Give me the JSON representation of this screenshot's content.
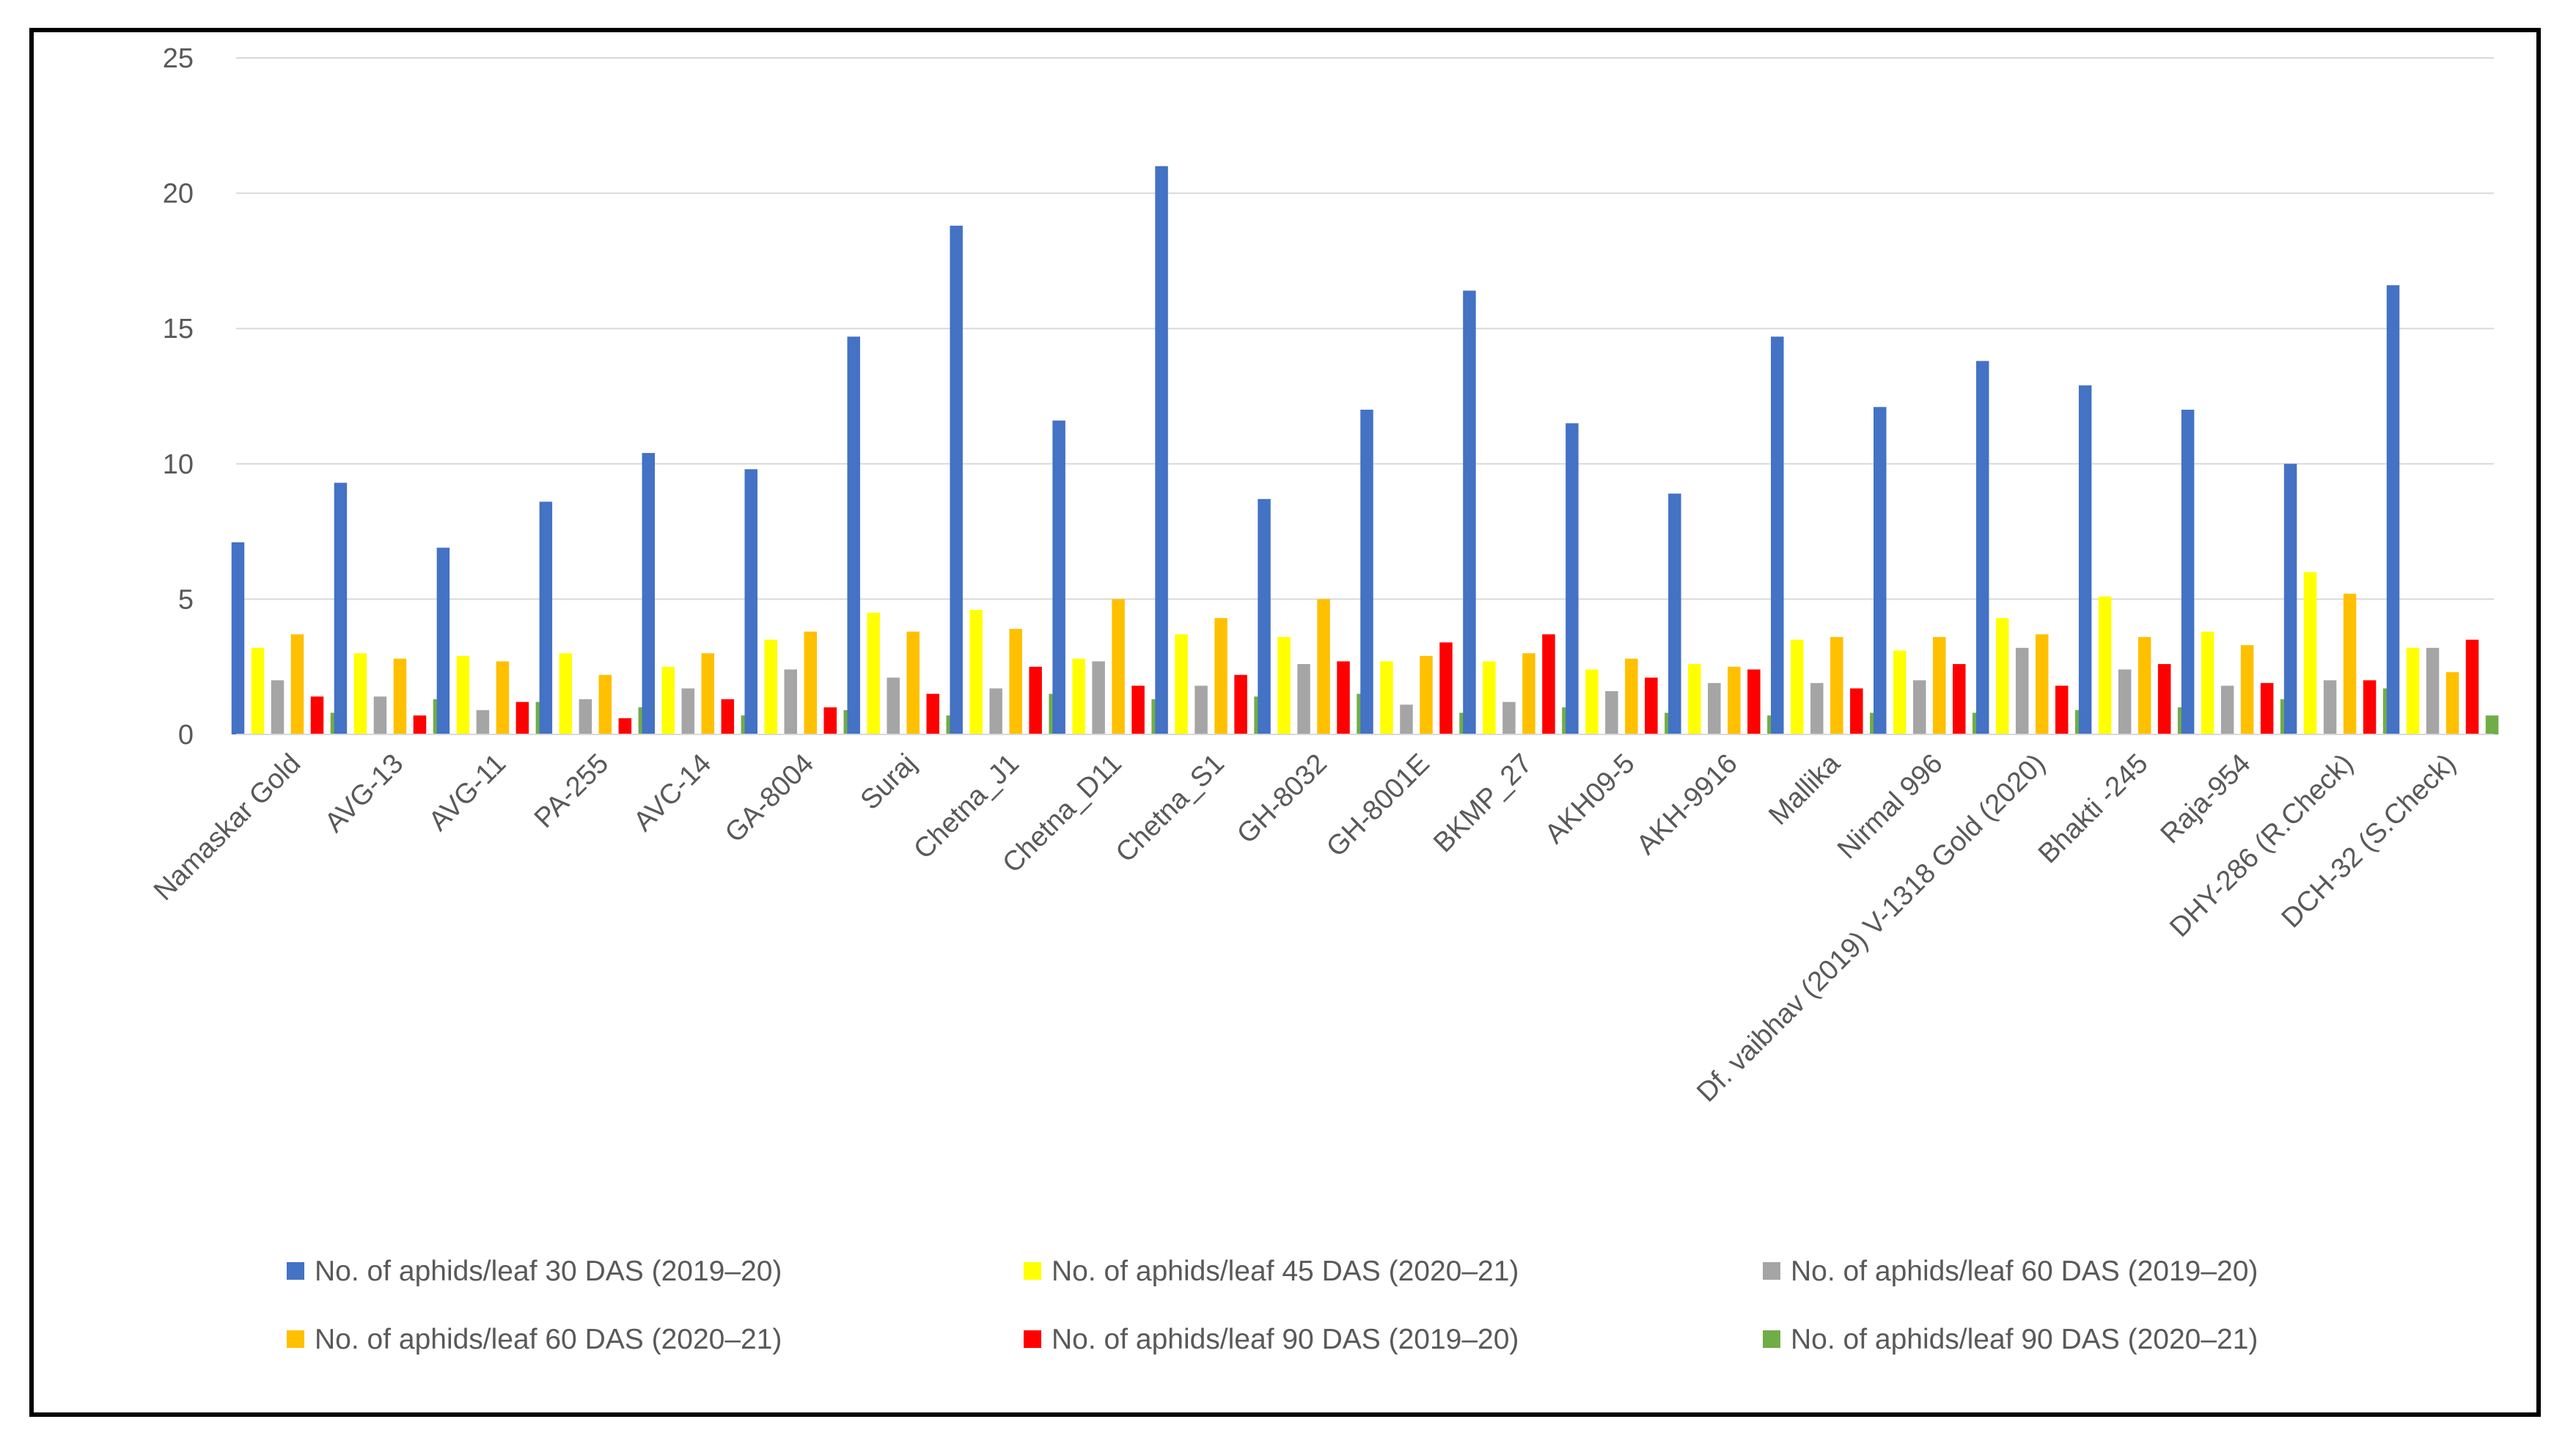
{
  "chart_data": {
    "type": "bar",
    "title": "",
    "xlabel": "",
    "ylabel": "",
    "ylim": [
      0,
      25
    ],
    "yticks": [
      0,
      5,
      10,
      15,
      20,
      25
    ],
    "grid": true,
    "legend_position": "bottom",
    "categories": [
      "Namaskar Gold",
      "AVG-13",
      "AVG-11",
      "PA-255",
      "AVC-14",
      "GA-8004",
      "Suraj",
      "Chetna_J1",
      "Chetna_D11",
      "Chetna_S1",
      "GH-8032",
      "GH-8001E",
      "BKMP_27",
      "AKH09-5",
      "AKH-9916",
      "Mallika",
      "Nirmal 996",
      "Df. vaibhav (2019) V-1318 Gold (2020)",
      "Bhakti -245",
      "Raja-954",
      "DHY-286  (R.Check)",
      "DCH-32 (S.Check)"
    ],
    "series": [
      {
        "name": "No. of aphids/leaf 30 DAS (2019–20)",
        "color": "#4472C4",
        "values": [
          7.1,
          9.3,
          6.9,
          8.6,
          10.4,
          9.8,
          14.7,
          18.8,
          11.6,
          21.0,
          8.7,
          12.0,
          16.4,
          11.5,
          8.9,
          14.7,
          12.1,
          13.8,
          12.9,
          12.0,
          10.0,
          16.6
        ]
      },
      {
        "name": "No. of aphids/leaf 45 DAS (2020–21)",
        "color": "#FFFF00",
        "values": [
          3.2,
          3.0,
          2.9,
          3.0,
          2.5,
          3.5,
          4.5,
          4.6,
          2.8,
          3.7,
          3.6,
          2.7,
          2.7,
          2.4,
          2.6,
          3.5,
          3.1,
          4.3,
          5.1,
          3.8,
          6.0,
          3.2
        ]
      },
      {
        "name": "No. of aphids/leaf 60 DAS (2019–20)",
        "color": "#A5A5A5",
        "values": [
          2.0,
          1.4,
          0.9,
          1.3,
          1.7,
          2.4,
          2.1,
          1.7,
          2.7,
          1.8,
          2.6,
          1.1,
          1.2,
          1.6,
          1.9,
          1.9,
          2.0,
          3.2,
          2.4,
          1.8,
          2.0,
          3.2
        ]
      },
      {
        "name": "No. of aphids/leaf 60 DAS (2020–21)",
        "color": "#FFC000",
        "values": [
          3.7,
          2.8,
          2.7,
          2.2,
          3.0,
          3.8,
          3.8,
          3.9,
          5.0,
          4.3,
          5.0,
          2.9,
          3.0,
          2.8,
          2.5,
          3.6,
          3.6,
          3.7,
          3.6,
          3.3,
          5.2,
          2.3
        ]
      },
      {
        "name": "No. of aphids/leaf 90 DAS (2019–20)",
        "color": "#FF0000",
        "values": [
          1.4,
          0.7,
          1.2,
          0.6,
          1.3,
          1.0,
          1.5,
          2.5,
          1.8,
          2.2,
          2.7,
          3.4,
          3.7,
          2.1,
          2.4,
          1.7,
          2.6,
          1.8,
          2.6,
          1.9,
          2.0,
          3.5
        ]
      },
      {
        "name": "No. of aphids/leaf 90 DAS (2020–21)",
        "color": "#70AD47",
        "values": [
          0.8,
          1.3,
          1.2,
          1.0,
          0.7,
          0.9,
          0.7,
          1.5,
          1.3,
          1.4,
          1.5,
          0.8,
          1.0,
          0.8,
          0.7,
          0.8,
          0.8,
          0.9,
          1.0,
          1.3,
          1.7,
          0.7
        ]
      }
    ]
  }
}
